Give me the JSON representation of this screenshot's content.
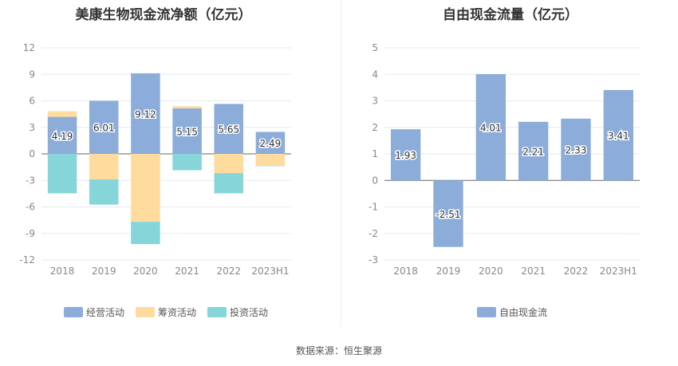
{
  "chart_data": [
    {
      "type": "bar",
      "stacked": true,
      "title": "美康生物现金流净额（亿元）",
      "categories": [
        "2018",
        "2019",
        "2020",
        "2021",
        "2022",
        "2023H1"
      ],
      "ylim": [
        -12,
        12
      ],
      "yticks": [
        12,
        9,
        6,
        3,
        0,
        -3,
        -6,
        -9,
        -12
      ],
      "grid": true,
      "legend": "bottom",
      "series": [
        {
          "name": "经营活动",
          "color": "#8cadd9",
          "values": [
            4.19,
            6.01,
            9.12,
            5.15,
            5.65,
            2.49
          ],
          "labels": true
        },
        {
          "name": "筹资活动",
          "color": "#ffdb9e",
          "values": [
            0.63,
            -2.89,
            -7.68,
            0.24,
            -2.17,
            -1.34
          ]
        },
        {
          "name": "投资活动",
          "color": "#86d6d9",
          "values": [
            -4.46,
            -2.85,
            -2.53,
            -1.85,
            -2.29,
            -0.03
          ]
        }
      ]
    },
    {
      "type": "bar",
      "title": "自由现金流量（亿元）",
      "categories": [
        "2018",
        "2019",
        "2020",
        "2021",
        "2022",
        "2023H1"
      ],
      "ylim": [
        -3,
        5
      ],
      "yticks": [
        5,
        4,
        3,
        2,
        1,
        0,
        -1,
        -2,
        -3
      ],
      "grid": true,
      "legend": "bottom",
      "series": [
        {
          "name": "自由现金流",
          "color": "#8cadd9",
          "values": [
            1.93,
            -2.51,
            4.01,
            2.21,
            2.33,
            3.41
          ],
          "labels": true
        }
      ]
    }
  ],
  "source": "数据来源：恒生聚源"
}
